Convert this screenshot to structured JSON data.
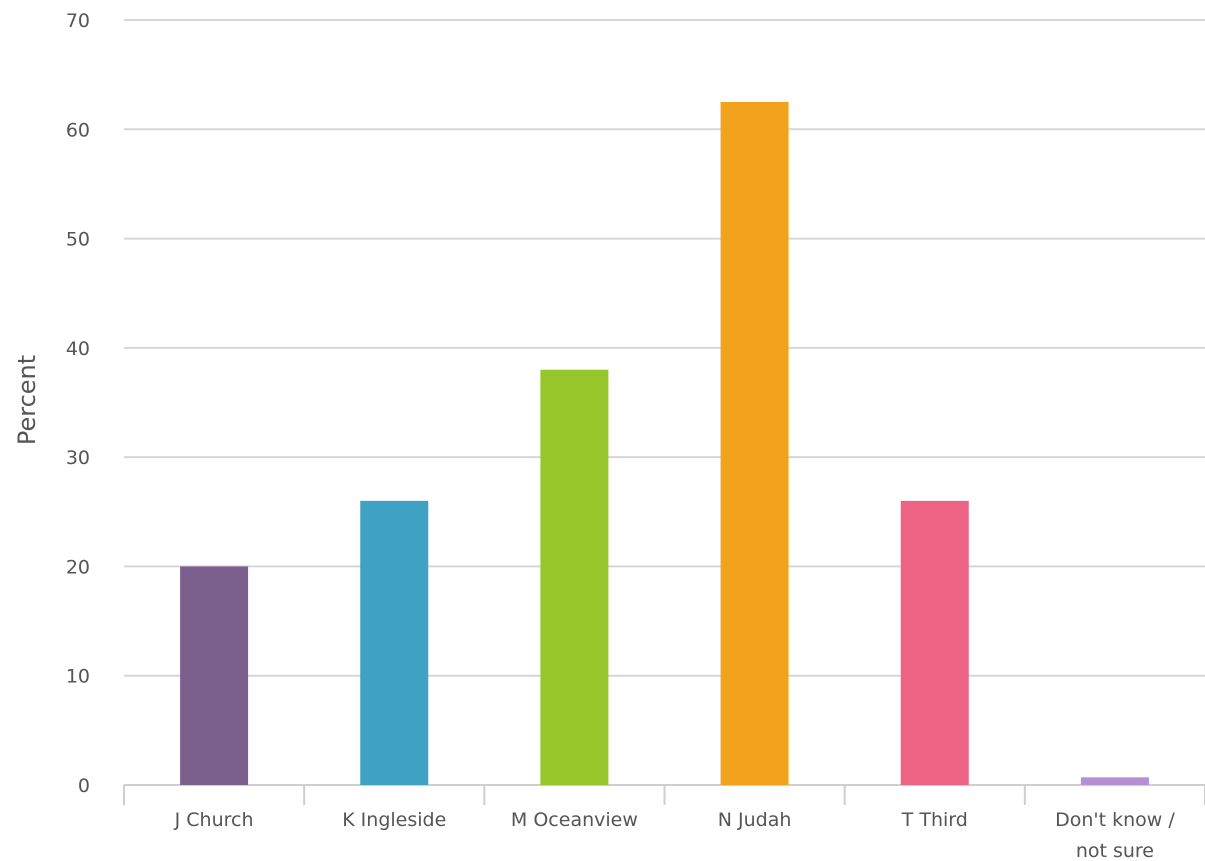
{
  "chart_data": {
    "type": "bar",
    "title": "",
    "xlabel": "",
    "ylabel": "Percent",
    "ylim": [
      0,
      70
    ],
    "yticks": [
      "0",
      "10",
      "20",
      "30",
      "40",
      "50",
      "60",
      "70"
    ],
    "grid": true,
    "legend": "none",
    "categories": [
      [
        "J Church"
      ],
      [
        "K Ingleside"
      ],
      [
        "M Oceanview"
      ],
      [
        "N Judah"
      ],
      [
        "T Third"
      ],
      [
        "Don't know /",
        "not sure"
      ]
    ],
    "values": [
      20,
      26,
      38,
      62.5,
      26,
      0.7
    ],
    "colors": [
      "#7b5f8c",
      "#3fa1c3",
      "#97c62a",
      "#f2a21c",
      "#ee6384",
      "#b48fd4"
    ]
  }
}
